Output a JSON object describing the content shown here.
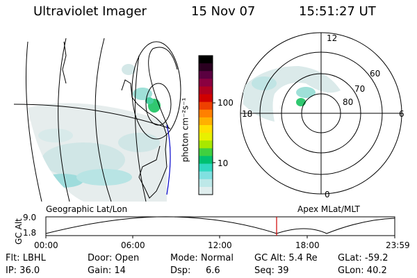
{
  "header": {
    "instrument": "Ultraviolet Imager",
    "date": "15 Nov 07",
    "time": "15:51:27 UT"
  },
  "left_panel": {
    "caption": "Geographic Lat/Lon"
  },
  "colorbar": {
    "unit_label": "photon cm⁻²s⁻¹",
    "tick_labels": [
      "100",
      "10"
    ],
    "colors": [
      "#000000",
      "#2a0020",
      "#5a0040",
      "#8a0040",
      "#b00020",
      "#d00000",
      "#ee4000",
      "#ff8000",
      "#ffb000",
      "#ffe000",
      "#e8f000",
      "#a8e800",
      "#40d040",
      "#00c070",
      "#30d8c0",
      "#80e0e0",
      "#bde8e8",
      "#e0eeee"
    ]
  },
  "right_panel": {
    "caption": "Apex MLat/MLT",
    "lat_labels": [
      "60",
      "70",
      "80"
    ],
    "mlt_labels": {
      "top": "12",
      "left": "18",
      "right": "6",
      "bottom": "0"
    }
  },
  "altitude_plot": {
    "ylabel": "GC Alt",
    "yticks": [
      "9.0",
      "1.8"
    ],
    "xticks": [
      "00:00",
      "06:00",
      "12:00",
      "18:00",
      "23:59"
    ],
    "marker_color": "#d00000"
  },
  "info": {
    "filter": "Flt: LBHL",
    "door": "Door: Open",
    "mode": "Mode: Normal",
    "gc_alt": "GC Alt: 5.4 Re",
    "glat": "GLat: -59.2",
    "ip": "IP: 36.0",
    "gain": "Gain: 14",
    "dsp_label": "Dsp:",
    "dsp_value": "6.6",
    "seq": "Seq: 39",
    "glon": "GLon:  40.2"
  }
}
